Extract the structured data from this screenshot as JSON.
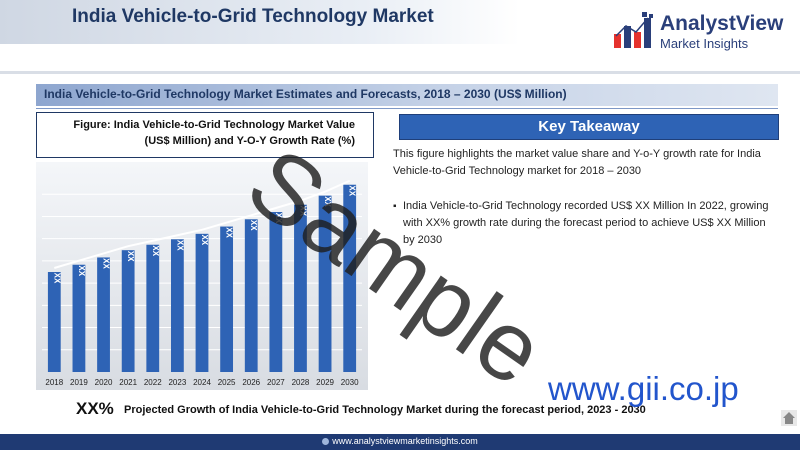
{
  "header": {
    "title": "India Vehicle-to-Grid Technology Market",
    "brand_name": "AnalystView",
    "brand_sub": "Market Insights",
    "brand_icon": "bar-chart-logo-icon"
  },
  "section": {
    "title": "India Vehicle-to-Grid Technology Market Estimates and Forecasts, 2018 – 2030 (US$ Million)"
  },
  "figure": {
    "caption": "Figure: India Vehicle-to-Grid Technology Market Value (US$ Million) and Y-O-Y Growth Rate (%)"
  },
  "chart_data": {
    "type": "bar",
    "categories": [
      "2018",
      "2019",
      "2020",
      "2021",
      "2022",
      "2023",
      "2024",
      "2025",
      "2026",
      "2027",
      "2028",
      "2029",
      "2030"
    ],
    "values": [
      0.55,
      0.59,
      0.63,
      0.67,
      0.7,
      0.73,
      0.76,
      0.8,
      0.84,
      0.88,
      0.92,
      0.97,
      1.03
    ],
    "data_labels": [
      "XX",
      "XX",
      "XX",
      "XX",
      "XX",
      "XX",
      "XX",
      "XX",
      "XX",
      "XX",
      "XX",
      "XX",
      "XX"
    ],
    "bar_color": "#2e63b5",
    "line_color": "#ffffff",
    "grid": true
  },
  "takeaway": {
    "title": "Key Takeaway",
    "intro": "This figure highlights the market value share and Y-o-Y growth rate for India Vehicle-to-Grid Technology market for 2018 – 2030",
    "bullet": "India Vehicle-to-Grid Technology recorded US$ XX Million In 2022, growing with XX% growth rate during the forecast period to achieve US$ XX Million by 2030"
  },
  "growth": {
    "value": "XX%",
    "text": "Projected Growth of India Vehicle-to-Grid Technology Market during the forecast period, 2023 - 2030"
  },
  "footer": {
    "url": "www.analystviewmarketinsights.com"
  },
  "overlay": {
    "watermark": "Sample",
    "gii": "www.gii.co.jp",
    "home_icon": "home-icon"
  },
  "colors": {
    "navy": "#1f3864",
    "accent_blue": "#2e63b5",
    "footer": "#1f3a73"
  }
}
